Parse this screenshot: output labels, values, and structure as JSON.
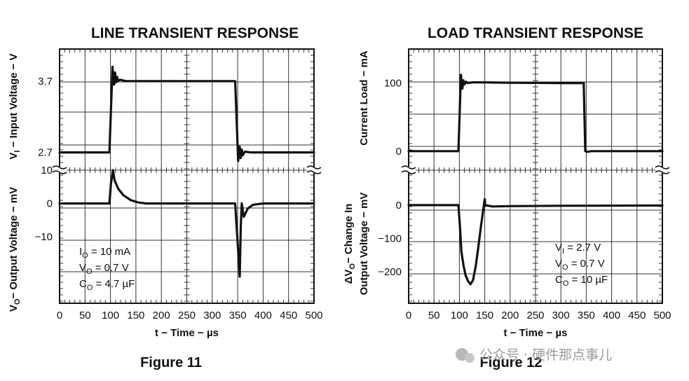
{
  "chart_data": [
    {
      "type": "line",
      "title": "LINE TRANSIENT RESPONSE",
      "figure_label": "Figure 11",
      "xlabel": "t − Time − µs",
      "xlim": [
        0,
        500
      ],
      "x_ticks": [
        "0",
        "50",
        "100",
        "150",
        "200",
        "250",
        "300",
        "350",
        "400",
        "450",
        "500"
      ],
      "top_panel": {
        "ylabel": "VI − Input Voltage − V",
        "y_ticks": [
          {
            "label": "3.7",
            "value": 3.7
          },
          {
            "label": "2.7",
            "value": 2.7
          }
        ],
        "ylim": [
          2.45,
          4.15
        ],
        "series": [
          {
            "x": [
              0,
              98,
              104,
              107,
              109,
              111,
              113,
              115,
              119,
              130,
              345,
              351,
              354,
              356,
              358,
              360,
              364,
              375,
              500
            ],
            "y": [
              2.7,
              2.7,
              3.9,
              3.65,
              3.82,
              3.68,
              3.76,
              3.7,
              3.72,
              3.7,
              3.7,
              2.58,
              2.78,
              2.62,
              2.74,
              2.66,
              2.71,
              2.7,
              2.7
            ]
          }
        ]
      },
      "bottom_panel": {
        "ylabel": "VO − Output Voltage − mV",
        "y_ticks": [
          {
            "label": "10",
            "value": 10
          },
          {
            "label": "0",
            "value": 0
          },
          {
            "label": "−10",
            "value": -10
          }
        ],
        "ylim": [
          -30,
          10
        ],
        "series": [
          {
            "x": [
              0,
              98,
              101,
              105,
              108,
              115,
              125,
              140,
              155,
              170,
              190,
              345,
              350,
              354,
              356,
              358,
              362,
              370,
              380,
              400,
              500
            ],
            "y": [
              0,
              0,
              6,
              10,
              7,
              4.5,
              2.5,
              1,
              0.3,
              0,
              0,
              0,
              -12,
              -22,
              -7,
              0,
              -4,
              -1.5,
              -0.4,
              0,
              0
            ]
          }
        ]
      },
      "annotations": [
        {
          "label": "IO = 10 mA",
          "base": "I",
          "sub": "O",
          "rest": " = 10 mA"
        },
        {
          "label": "VO = 0.7 V",
          "base": "V",
          "sub": "O",
          "rest": " = 0.7 V"
        },
        {
          "label": "CO = 4.7 µF",
          "base": "C",
          "sub": "O",
          "rest": " = 4.7 µF"
        }
      ]
    },
    {
      "type": "line",
      "title": "LOAD TRANSIENT RESPONSE",
      "figure_label": "Figure 12",
      "xlabel": "t − Time − µs",
      "xlim": [
        0,
        500
      ],
      "x_ticks": [
        "0",
        "50",
        "100",
        "150",
        "200",
        "250",
        "300",
        "350",
        "400",
        "450",
        "500"
      ],
      "top_panel": {
        "ylabel": "Current Load − mA",
        "y_ticks": [
          {
            "label": "100",
            "value": 100
          },
          {
            "label": "0",
            "value": 0
          }
        ],
        "ylim": [
          -28,
          150
        ],
        "series": [
          {
            "x": [
              0,
              98,
              103,
              106,
              108,
              110,
              113,
              117,
              125,
              150,
              200,
              300,
              345,
              348,
              352,
              360,
              500
            ],
            "y": [
              0,
              0,
              112,
              92,
              104,
              98,
              102,
              100,
              101,
              101,
              100.5,
              100,
              100,
              0,
              -1,
              0,
              0
            ]
          }
        ]
      },
      "bottom_panel": {
        "ylabel": "ΔVO − Change In Output Voltage − mV",
        "y_ticks": [
          {
            "label": "0",
            "value": 0
          },
          {
            "label": "−100",
            "value": -100
          },
          {
            "label": "−200",
            "value": -200
          }
        ],
        "ylim": [
          -295,
          105
        ],
        "series": [
          {
            "x": [
              0,
              98,
              101,
              104,
              108,
              112,
              117,
              122,
              127,
              132,
              137,
              142,
              147,
              150,
              151,
              155,
              165,
              200,
              300,
              500
            ],
            "y": [
              0,
              0,
              -60,
              -140,
              -180,
              -210,
              -228,
              -238,
              -225,
              -185,
              -130,
              -70,
              -15,
              18,
              -2,
              -1,
              -4,
              -3,
              -2,
              -1
            ]
          }
        ]
      },
      "annotations": [
        {
          "label": "VI = 2.7 V",
          "base": "V",
          "sub": "I",
          "rest": " = 2.7 V"
        },
        {
          "label": "VO = 0.7 V",
          "base": "V",
          "sub": "O",
          "rest": " = 0.7 V"
        },
        {
          "label": "CO = 10 µF",
          "base": "C",
          "sub": "O",
          "rest": " = 10 µF"
        }
      ]
    }
  ],
  "watermark": "公众号 · 硬件那点事儿",
  "colors": {
    "trace": "#111111",
    "grid": "#333333",
    "watermark": "#9a9a9a"
  }
}
